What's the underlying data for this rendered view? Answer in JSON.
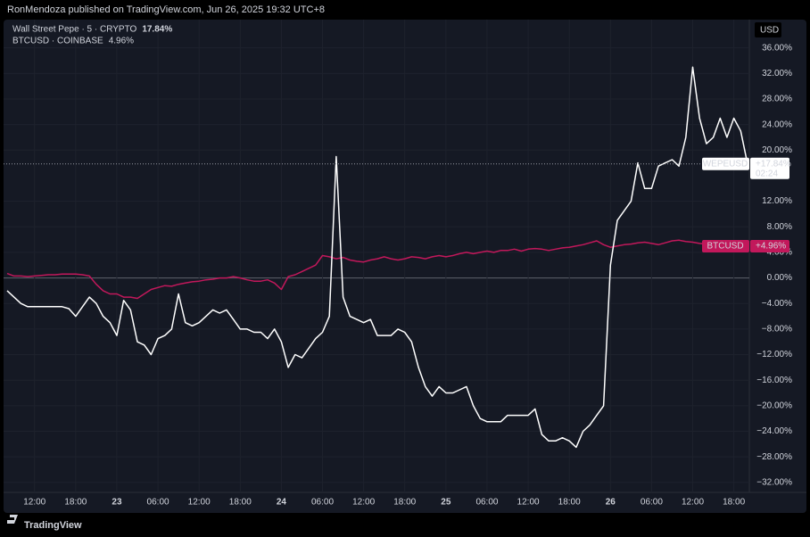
{
  "header": "RonMendoza published on TradingView.com, Jun 26, 2025 19:32 UTC+8",
  "footer": "TradingView",
  "chart_data": {
    "type": "line",
    "axis_label": "USD",
    "grid": true,
    "ylim": [
      -33,
      40
    ],
    "yticks": [
      {
        "value": 36,
        "label": "36.00%"
      },
      {
        "value": 32,
        "label": "32.00%"
      },
      {
        "value": 28,
        "label": "28.00%"
      },
      {
        "value": 24,
        "label": "24.00%"
      },
      {
        "value": 20,
        "label": "20.00%"
      },
      {
        "value": 12,
        "label": "12.00%"
      },
      {
        "value": 8,
        "label": "8.00%"
      },
      {
        "value": 4,
        "label": "4.00%"
      },
      {
        "value": 0,
        "label": "0.00%"
      },
      {
        "value": -4,
        "label": "−4.00%"
      },
      {
        "value": -8,
        "label": "−8.00%"
      },
      {
        "value": -12,
        "label": "−12.00%"
      },
      {
        "value": -16,
        "label": "−16.00%"
      },
      {
        "value": -20,
        "label": "−20.00%"
      },
      {
        "value": -24,
        "label": "−24.00%"
      },
      {
        "value": -28,
        "label": "−28.00%"
      },
      {
        "value": -32,
        "label": "−32.00%"
      }
    ],
    "categories": [
      null,
      null,
      null,
      null,
      "12:00",
      null,
      null,
      null,
      null,
      null,
      "18:00",
      null,
      null,
      null,
      null,
      null,
      "23",
      null,
      null,
      null,
      null,
      null,
      "06:00",
      null,
      null,
      null,
      null,
      null,
      "12:00",
      null,
      null,
      null,
      null,
      null,
      "18:00",
      null,
      null,
      null,
      null,
      null,
      "24",
      null,
      null,
      null,
      null,
      null,
      "06:00",
      null,
      null,
      null,
      null,
      null,
      "12:00",
      null,
      null,
      null,
      null,
      null,
      "18:00",
      null,
      null,
      null,
      null,
      null,
      "25",
      null,
      null,
      null,
      null,
      null,
      "06:00",
      null,
      null,
      null,
      null,
      null,
      "12:00",
      null,
      null,
      null,
      null,
      null,
      "18:00",
      null,
      null,
      null,
      null,
      null,
      "26",
      null,
      null,
      null,
      null,
      null,
      "06:00",
      null,
      null,
      null,
      null,
      null,
      "12:00",
      null,
      null,
      null,
      null,
      null,
      "18:00",
      null,
      null
    ],
    "series": [
      {
        "name": "WEPEUSD",
        "legend": "Wall Street Pepe · 5 · CRYPTO",
        "legend_value": "17.84%",
        "price_label": "+17.84%",
        "countdown": "02:24",
        "color": "#ffffff",
        "values": [
          -2,
          -3,
          -4,
          -4.5,
          -4.5,
          -4.5,
          -4.5,
          -4.5,
          -4.5,
          -4.8,
          -6,
          -4.5,
          -3,
          -4,
          -6,
          -7,
          -9,
          -3.5,
          -5,
          -10,
          -10.5,
          -12,
          -9.5,
          -9,
          -8,
          -2.5,
          -7,
          -7.5,
          -7,
          -6,
          -5,
          -5.5,
          -5,
          -6.5,
          -8,
          -8,
          -8.5,
          -8.5,
          -9.5,
          -8,
          -10,
          -14,
          -12,
          -12.5,
          -11,
          -9.5,
          -8.5,
          -6,
          19,
          -3,
          -6,
          -6.5,
          -7,
          -6.5,
          -9,
          -9,
          -9,
          -8,
          -8.5,
          -10,
          -14,
          -17,
          -18.5,
          -17,
          -18,
          -18,
          -17.5,
          -17,
          -20,
          -22,
          -22.5,
          -22.5,
          -22.5,
          -21.5,
          -21.5,
          -21.5,
          -21.5,
          -20.5,
          -24.5,
          -25.5,
          -25.5,
          -25,
          -25.5,
          -26.5,
          -24,
          -23,
          -21.5,
          -20,
          2,
          9,
          10.5,
          12,
          18,
          14,
          14,
          17.5,
          18,
          18.5,
          17.5,
          22,
          33,
          25,
          21,
          22,
          25,
          22,
          25,
          23,
          17.84
        ]
      },
      {
        "name": "BTCUSD",
        "legend": "BTCUSD · COINBASE",
        "legend_value": "4.96%",
        "price_label": "+4.96%",
        "color": "#c2185b",
        "values": [
          0.7,
          0.3,
          0.3,
          0.2,
          0.3,
          0.4,
          0.5,
          0.5,
          0.6,
          0.6,
          0.6,
          0.5,
          0.3,
          -1,
          -2,
          -2.5,
          -2.5,
          -3,
          -3,
          -3.2,
          -2.5,
          -1.8,
          -1.5,
          -1.2,
          -1.3,
          -1,
          -0.8,
          -0.6,
          -0.5,
          -0.3,
          -0.2,
          0,
          0,
          0.2,
          0,
          -0.3,
          -0.5,
          -0.5,
          -0.3,
          -0.8,
          -1.8,
          0.2,
          0.5,
          1,
          1.5,
          2,
          3.5,
          3.3,
          3,
          3.2,
          2.8,
          2.6,
          2.5,
          2.8,
          3,
          3.3,
          3,
          2.8,
          3,
          3.3,
          3.2,
          3,
          3.3,
          3.5,
          3.3,
          3.5,
          3.8,
          4,
          3.8,
          4,
          4.2,
          4,
          4.3,
          4.3,
          4.5,
          4.2,
          4.5,
          4.6,
          4.5,
          4.3,
          4.5,
          4.7,
          4.8,
          5,
          5.2,
          5.5,
          5.8,
          5.2,
          4.8,
          5,
          5.2,
          5.3,
          5.5,
          5.6,
          5.4,
          5.2,
          5.5,
          5.8,
          5.9,
          5.7,
          5.6,
          5.4,
          5.3,
          5.3,
          5.2,
          5.1,
          5.1,
          5.0,
          4.96
        ]
      }
    ]
  }
}
